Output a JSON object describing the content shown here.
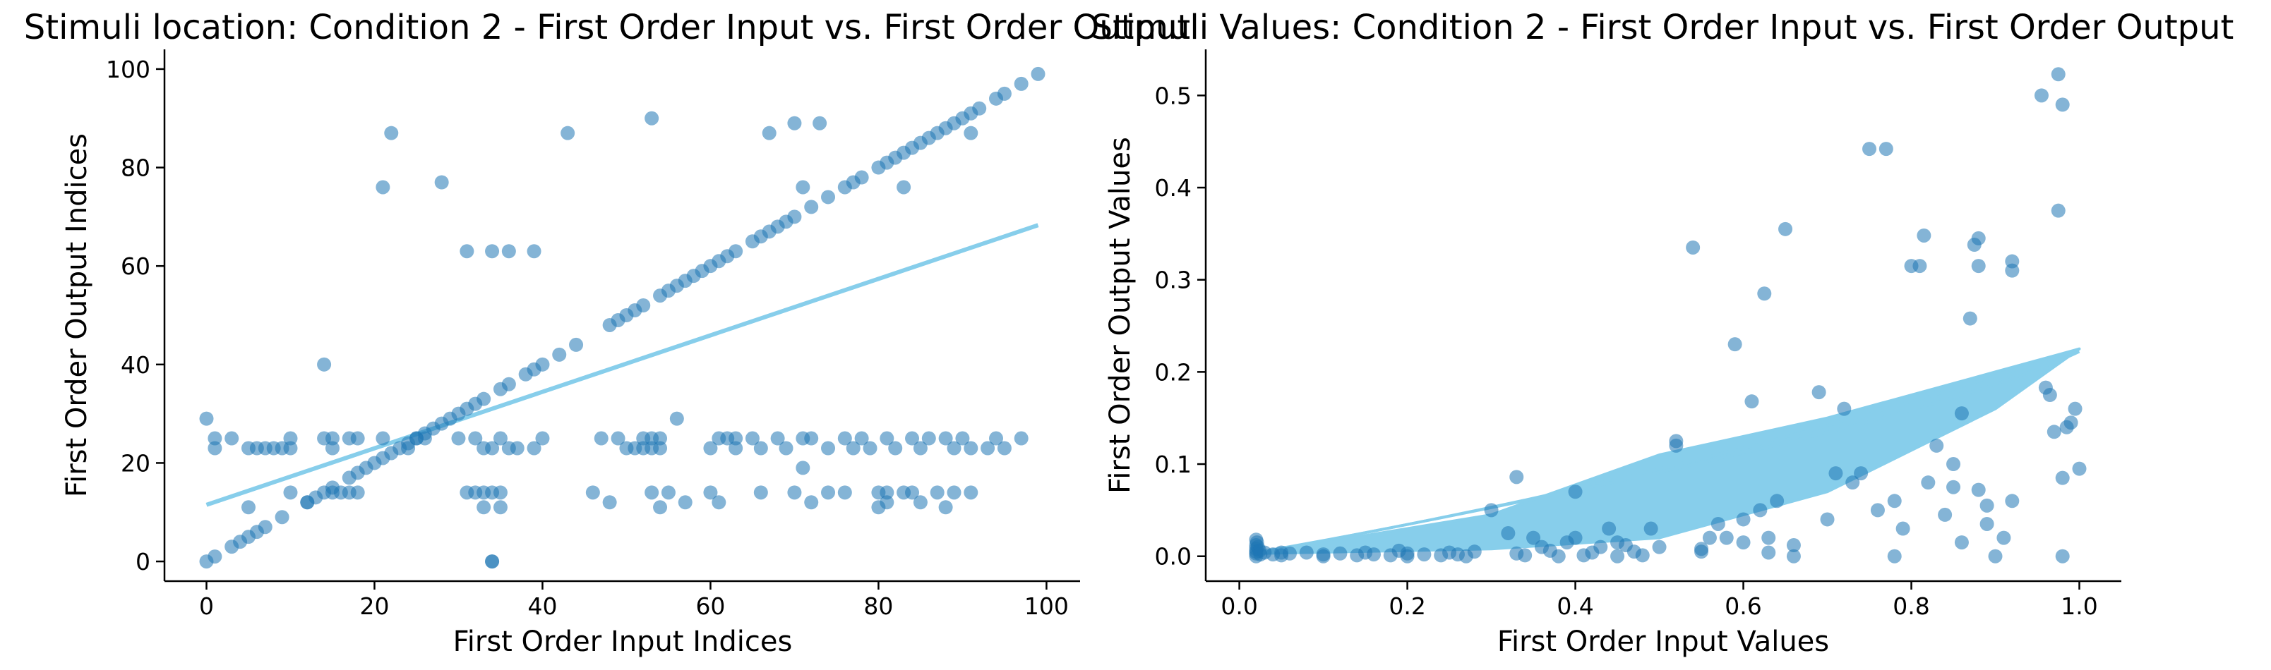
{
  "colors": {
    "points": "#1f77b4",
    "fit_line": "#87ceeb",
    "axis": "#000000"
  },
  "chart_data": [
    {
      "type": "scatter",
      "title": "Stimuli location: Condition 2 - First Order Input vs. First Order Output",
      "xlabel": "First Order Input Indices",
      "ylabel": "First Order Output Indices",
      "xlim": [
        -5,
        104
      ],
      "ylim": [
        -4,
        104
      ],
      "xticks": [
        0,
        20,
        40,
        60,
        80,
        100
      ],
      "yticks": [
        0,
        20,
        40,
        60,
        80,
        100
      ],
      "xtick_labels": [
        "0",
        "20",
        "40",
        "60",
        "80",
        "100"
      ],
      "ytick_labels": [
        "0",
        "20",
        "40",
        "60",
        "80",
        "100"
      ],
      "regression_line": [
        [
          0,
          11.5
        ],
        [
          99,
          68.3
        ]
      ],
      "points": [
        [
          0,
          0
        ],
        [
          1,
          1
        ],
        [
          3,
          3
        ],
        [
          4,
          4
        ],
        [
          5,
          5
        ],
        [
          6,
          6
        ],
        [
          7,
          7
        ],
        [
          9,
          9
        ],
        [
          12,
          12
        ],
        [
          13,
          13
        ],
        [
          15,
          15
        ],
        [
          17,
          17
        ],
        [
          18,
          18
        ],
        [
          19,
          19
        ],
        [
          20,
          20
        ],
        [
          21,
          21
        ],
        [
          22,
          22
        ],
        [
          23,
          23
        ],
        [
          24,
          24
        ],
        [
          25,
          25
        ],
        [
          26,
          26
        ],
        [
          27,
          27
        ],
        [
          28,
          28
        ],
        [
          29,
          29
        ],
        [
          30,
          30
        ],
        [
          31,
          31
        ],
        [
          32,
          32
        ],
        [
          33,
          33
        ],
        [
          35,
          35
        ],
        [
          36,
          36
        ],
        [
          38,
          38
        ],
        [
          39,
          39
        ],
        [
          40,
          40
        ],
        [
          42,
          42
        ],
        [
          44,
          44
        ],
        [
          48,
          48
        ],
        [
          49,
          49
        ],
        [
          50,
          50
        ],
        [
          51,
          51
        ],
        [
          52,
          52
        ],
        [
          54,
          54
        ],
        [
          55,
          55
        ],
        [
          56,
          56
        ],
        [
          57,
          57
        ],
        [
          58,
          58
        ],
        [
          59,
          59
        ],
        [
          60,
          60
        ],
        [
          61,
          61
        ],
        [
          62,
          62
        ],
        [
          63,
          63
        ],
        [
          65,
          65
        ],
        [
          66,
          66
        ],
        [
          67,
          67
        ],
        [
          68,
          68
        ],
        [
          69,
          69
        ],
        [
          70,
          70
        ],
        [
          72,
          72
        ],
        [
          74,
          74
        ],
        [
          76,
          76
        ],
        [
          77,
          77
        ],
        [
          78,
          78
        ],
        [
          80,
          80
        ],
        [
          81,
          81
        ],
        [
          82,
          82
        ],
        [
          83,
          83
        ],
        [
          84,
          84
        ],
        [
          85,
          85
        ],
        [
          86,
          86
        ],
        [
          87,
          87
        ],
        [
          88,
          88
        ],
        [
          89,
          89
        ],
        [
          90,
          90
        ],
        [
          91,
          91
        ],
        [
          92,
          92
        ],
        [
          94,
          94
        ],
        [
          95,
          95
        ],
        [
          97,
          97
        ],
        [
          99,
          99
        ],
        [
          0,
          29
        ],
        [
          1,
          25
        ],
        [
          1,
          23
        ],
        [
          3,
          25
        ],
        [
          5,
          23
        ],
        [
          6,
          23
        ],
        [
          7,
          23
        ],
        [
          8,
          23
        ],
        [
          9,
          23
        ],
        [
          10,
          25
        ],
        [
          10,
          23
        ],
        [
          14,
          25
        ],
        [
          15,
          25
        ],
        [
          15,
          23
        ],
        [
          17,
          25
        ],
        [
          18,
          25
        ],
        [
          21,
          25
        ],
        [
          24,
          23
        ],
        [
          25,
          25
        ],
        [
          26,
          25
        ],
        [
          30,
          25
        ],
        [
          32,
          25
        ],
        [
          33,
          23
        ],
        [
          34,
          23
        ],
        [
          35,
          25
        ],
        [
          36,
          23
        ],
        [
          37,
          23
        ],
        [
          39,
          23
        ],
        [
          40,
          25
        ],
        [
          47,
          25
        ],
        [
          49,
          25
        ],
        [
          50,
          23
        ],
        [
          51,
          23
        ],
        [
          52,
          25
        ],
        [
          52,
          23
        ],
        [
          53,
          25
        ],
        [
          53,
          23
        ],
        [
          54,
          25
        ],
        [
          54,
          23
        ],
        [
          56,
          29
        ],
        [
          60,
          23
        ],
        [
          61,
          25
        ],
        [
          62,
          25
        ],
        [
          63,
          25
        ],
        [
          63,
          23
        ],
        [
          65,
          25
        ],
        [
          66,
          23
        ],
        [
          68,
          25
        ],
        [
          69,
          23
        ],
        [
          71,
          25
        ],
        [
          72,
          25
        ],
        [
          74,
          23
        ],
        [
          76,
          25
        ],
        [
          77,
          23
        ],
        [
          78,
          25
        ],
        [
          79,
          23
        ],
        [
          81,
          25
        ],
        [
          82,
          23
        ],
        [
          84,
          25
        ],
        [
          85,
          23
        ],
        [
          86,
          25
        ],
        [
          88,
          25
        ],
        [
          89,
          23
        ],
        [
          90,
          25
        ],
        [
          91,
          23
        ],
        [
          93,
          23
        ],
        [
          94,
          25
        ],
        [
          95,
          23
        ],
        [
          97,
          25
        ],
        [
          5,
          11
        ],
        [
          10,
          14
        ],
        [
          12,
          12
        ],
        [
          14,
          14
        ],
        [
          15,
          14
        ],
        [
          16,
          14
        ],
        [
          17,
          14
        ],
        [
          18,
          14
        ],
        [
          31,
          14
        ],
        [
          32,
          14
        ],
        [
          33,
          14
        ],
        [
          33,
          11
        ],
        [
          34,
          14
        ],
        [
          35,
          14
        ],
        [
          35,
          11
        ],
        [
          46,
          14
        ],
        [
          48,
          12
        ],
        [
          53,
          14
        ],
        [
          54,
          11
        ],
        [
          55,
          14
        ],
        [
          57,
          12
        ],
        [
          60,
          14
        ],
        [
          61,
          12
        ],
        [
          66,
          14
        ],
        [
          70,
          14
        ],
        [
          71,
          19
        ],
        [
          72,
          12
        ],
        [
          74,
          14
        ],
        [
          76,
          14
        ],
        [
          80,
          11
        ],
        [
          80,
          14
        ],
        [
          81,
          14
        ],
        [
          81,
          12
        ],
        [
          83,
          14
        ],
        [
          84,
          14
        ],
        [
          85,
          12
        ],
        [
          87,
          14
        ],
        [
          88,
          11
        ],
        [
          89,
          14
        ],
        [
          91,
          14
        ],
        [
          14,
          40
        ],
        [
          21,
          76
        ],
        [
          22,
          87
        ],
        [
          28,
          77
        ],
        [
          31,
          63
        ],
        [
          34,
          63
        ],
        [
          36,
          63
        ],
        [
          39,
          63
        ],
        [
          43,
          87
        ],
        [
          53,
          90
        ],
        [
          67,
          87
        ],
        [
          70,
          89
        ],
        [
          71,
          76
        ],
        [
          73,
          89
        ],
        [
          83,
          76
        ],
        [
          91,
          87
        ],
        [
          34,
          0
        ],
        [
          34,
          0
        ]
      ]
    },
    {
      "type": "scatter",
      "title": "Stimuli Values: Condition 2 - First Order Input vs. First Order Output",
      "xlabel": "First Order Input Values",
      "ylabel": "First Order Output Values",
      "xlim": [
        -0.04,
        1.05
      ],
      "ylim": [
        -0.027,
        0.55
      ],
      "xticks": [
        0.0,
        0.2,
        0.4,
        0.6,
        0.8,
        1.0
      ],
      "yticks": [
        0.0,
        0.1,
        0.2,
        0.3,
        0.4,
        0.5
      ],
      "xtick_labels": [
        "0.0",
        "0.2",
        "0.4",
        "0.6",
        "0.8",
        "1.0"
      ],
      "ytick_labels": [
        "0.0",
        "0.1",
        "0.2",
        "0.3",
        "0.4",
        "0.5"
      ],
      "fit_curve_band": {
        "start": [
          0.02,
          0.003
        ],
        "end": [
          1.0,
          0.225
        ],
        "upper_y_at": [
          [
            0.3,
            0.045
          ],
          [
            0.5,
            0.11
          ],
          [
            0.7,
            0.15
          ],
          [
            0.9,
            0.2
          ]
        ],
        "lower_y_at": [
          [
            0.3,
            0.008
          ],
          [
            0.5,
            0.02
          ],
          [
            0.7,
            0.07
          ],
          [
            0.9,
            0.16
          ]
        ]
      },
      "points": [
        [
          0.02,
          0.018
        ],
        [
          0.02,
          0.012
        ],
        [
          0.02,
          0.008
        ],
        [
          0.02,
          0.005
        ],
        [
          0.02,
          0.003
        ],
        [
          0.02,
          0.0
        ],
        [
          0.021,
          0.015
        ],
        [
          0.022,
          0.01
        ],
        [
          0.024,
          0.006
        ],
        [
          0.025,
          0.002
        ],
        [
          0.03,
          0.004
        ],
        [
          0.04,
          0.002
        ],
        [
          0.05,
          0.001
        ],
        [
          0.06,
          0.003
        ],
        [
          0.08,
          0.004
        ],
        [
          0.1,
          0.002
        ],
        [
          0.12,
          0.003
        ],
        [
          0.14,
          0.001
        ],
        [
          0.16,
          0.002
        ],
        [
          0.18,
          0.001
        ],
        [
          0.19,
          0.006
        ],
        [
          0.2,
          0.003
        ],
        [
          0.22,
          0.002
        ],
        [
          0.24,
          0.001
        ],
        [
          0.25,
          0.004
        ],
        [
          0.26,
          0.002
        ],
        [
          0.27,
          0.0
        ],
        [
          0.3,
          0.05
        ],
        [
          0.32,
          0.025
        ],
        [
          0.33,
          0.086
        ],
        [
          0.34,
          0.001
        ],
        [
          0.35,
          0.02
        ],
        [
          0.36,
          0.01
        ],
        [
          0.37,
          0.006
        ],
        [
          0.38,
          0.0
        ],
        [
          0.39,
          0.015
        ],
        [
          0.4,
          0.02
        ],
        [
          0.4,
          0.07
        ],
        [
          0.41,
          0.001
        ],
        [
          0.42,
          0.004
        ],
        [
          0.43,
          0.01
        ],
        [
          0.44,
          0.03
        ],
        [
          0.45,
          0.0
        ],
        [
          0.46,
          0.012
        ],
        [
          0.47,
          0.005
        ],
        [
          0.48,
          0.001
        ],
        [
          0.49,
          0.03
        ],
        [
          0.5,
          0.01
        ],
        [
          0.52,
          0.12
        ],
        [
          0.52,
          0.125
        ],
        [
          0.54,
          0.335
        ],
        [
          0.55,
          0.005
        ],
        [
          0.56,
          0.02
        ],
        [
          0.57,
          0.035
        ],
        [
          0.58,
          0.02
        ],
        [
          0.59,
          0.23
        ],
        [
          0.6,
          0.04
        ],
        [
          0.61,
          0.168
        ],
        [
          0.62,
          0.05
        ],
        [
          0.625,
          0.285
        ],
        [
          0.63,
          0.02
        ],
        [
          0.64,
          0.06
        ],
        [
          0.65,
          0.355
        ],
        [
          0.66,
          0.0
        ],
        [
          0.66,
          0.012
        ],
        [
          0.69,
          0.178
        ],
        [
          0.7,
          0.04
        ],
        [
          0.71,
          0.09
        ],
        [
          0.72,
          0.16
        ],
        [
          0.73,
          0.08
        ],
        [
          0.74,
          0.09
        ],
        [
          0.75,
          0.442
        ],
        [
          0.76,
          0.05
        ],
        [
          0.77,
          0.442
        ],
        [
          0.78,
          0.06
        ],
        [
          0.78,
          0.0
        ],
        [
          0.79,
          0.03
        ],
        [
          0.8,
          0.315
        ],
        [
          0.81,
          0.315
        ],
        [
          0.815,
          0.348
        ],
        [
          0.82,
          0.08
        ],
        [
          0.83,
          0.12
        ],
        [
          0.84,
          0.045
        ],
        [
          0.85,
          0.1
        ],
        [
          0.86,
          0.155
        ],
        [
          0.86,
          0.015
        ],
        [
          0.87,
          0.258
        ],
        [
          0.875,
          0.338
        ],
        [
          0.88,
          0.345
        ],
        [
          0.88,
          0.315
        ],
        [
          0.89,
          0.055
        ],
        [
          0.89,
          0.035
        ],
        [
          0.9,
          0.0
        ],
        [
          0.91,
          0.02
        ],
        [
          0.92,
          0.31
        ],
        [
          0.92,
          0.32
        ],
        [
          0.955,
          0.5
        ],
        [
          0.96,
          0.183
        ],
        [
          0.965,
          0.175
        ],
        [
          0.97,
          0.135
        ],
        [
          0.975,
          0.523
        ],
        [
          0.975,
          0.375
        ],
        [
          0.98,
          0.49
        ],
        [
          0.98,
          0.085
        ],
        [
          0.985,
          0.14
        ],
        [
          0.99,
          0.145
        ],
        [
          0.995,
          0.16
        ],
        [
          1.0,
          0.095
        ],
        [
          0.98,
          0.0
        ],
        [
          0.92,
          0.06
        ],
        [
          0.88,
          0.072
        ],
        [
          0.85,
          0.075
        ],
        [
          0.6,
          0.015
        ],
        [
          0.63,
          0.004
        ],
        [
          0.55,
          0.008
        ],
        [
          0.45,
          0.015
        ],
        [
          0.33,
          0.003
        ],
        [
          0.28,
          0.005
        ],
        [
          0.2,
          0.0
        ],
        [
          0.15,
          0.004
        ],
        [
          0.1,
          0.0
        ],
        [
          0.05,
          0.004
        ]
      ]
    }
  ]
}
